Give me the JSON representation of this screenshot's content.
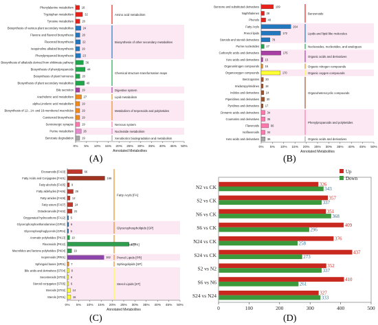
{
  "panel_labels": {
    "a": "(A)",
    "b": "(B)",
    "c": "(C)",
    "d": "(D)"
  },
  "chart_data": [
    {
      "id": "A",
      "type": "bar",
      "orientation": "horizontal",
      "xlabel": "Annotated Metabolites",
      "x_ticks": [
        "0%",
        "5%",
        "10%",
        "15%",
        "20%",
        "25%",
        "30%",
        "35%",
        "40%",
        "45%",
        "50%"
      ],
      "xlim": [
        0,
        0.5
      ],
      "n_total": 1000,
      "categories": [
        "Phenylalanine metabolism",
        "Tryptophan metabolism",
        "Tyrosine metabolism",
        "Biosynthesis of various plant secondary metabolites",
        "Flavone and flavonol biosynthesis",
        "Flavonoid biosynthesis",
        "Isoquinoline alkaloid biosynthesis",
        "Phenylpropanoid biosynthesis",
        "Biosynthesis of alkaloids derived from shikimate pathway",
        "Biosynthesis of phenylpropanoids",
        "Biosynthesis of plant hormones",
        "Biosynthesis of plant secondary metabolites",
        "Bile secretion",
        "Arachidonic acid metabolism",
        "alpha-Linolenic acid metabolism",
        "Biosynthesis of 12-, 14- and 16-membered macrolides",
        "Carotenoid biosynthesis",
        "Serotonergic synapse",
        "Purine metabolism",
        "Benzoate degradation"
      ],
      "values": [
        18,
        32,
        20,
        24,
        20,
        22,
        19,
        23,
        36,
        44,
        20,
        40,
        19,
        27,
        19,
        19,
        19,
        19,
        26,
        19
      ],
      "colors": [
        "#e8221b",
        "#e8221b",
        "#e8221b",
        "#2278be",
        "#2278be",
        "#2278be",
        "#2278be",
        "#2278be",
        "#1fa64a",
        "#1fa64a",
        "#1fa64a",
        "#1fa64a",
        "#a83ea3",
        "#f08a1c",
        "#f08a1c",
        "#f08a1c",
        "#f08a1c",
        "#ff78ad",
        "#e88ad0",
        "#a7a7a7"
      ],
      "groups": [
        {
          "name": "Amino acid metabolism",
          "start": 0,
          "end": 2,
          "color": "#e8221b"
        },
        {
          "name": "Biosynthesis of other secondary metabolites",
          "start": 3,
          "end": 7,
          "color": "#2278be"
        },
        {
          "name": "Chemical structure transformation maps",
          "start": 8,
          "end": 11,
          "color": "#1fa64a"
        },
        {
          "name": "Digestive system",
          "start": 12,
          "end": 12,
          "color": "#a83ea3"
        },
        {
          "name": "Lipid metabolism",
          "start": 13,
          "end": 13,
          "color": "#f08a1c"
        },
        {
          "name": "Metabolism of terpenoids and polyketides",
          "start": 14,
          "end": 16,
          "color": "#f08a1c"
        },
        {
          "name": "Nervous system",
          "start": 17,
          "end": 17,
          "color": "#ff78ad"
        },
        {
          "name": "Nucleotide metabolism",
          "start": 18,
          "end": 18,
          "color": "#e88ad0"
        },
        {
          "name": "Xenobiotics biodegradation and metabolism",
          "start": 19,
          "end": 19,
          "color": "#a7a7a7"
        }
      ]
    },
    {
      "id": "B",
      "type": "bar",
      "orientation": "horizontal",
      "xlabel": "Annotated Metabolites",
      "x_ticks": [
        "0%",
        "5%",
        "10%",
        "15%",
        "20%",
        "25%",
        "30%",
        "35%",
        "40%",
        "45%",
        "50%"
      ],
      "xlim": [
        0,
        0.5
      ],
      "n_total": 2000,
      "categories": [
        "Benzene and substituted derivatives",
        "Naphthalenes",
        "Phenols",
        "Fatty Acyls",
        "Prenol lipids",
        "Steroids and steroid derivatives",
        "Purine nucleotides",
        "Carboxylic acids and derivatives",
        "Keto acids and derivatives",
        "Organonitrogen compounds",
        "Organooxygen compounds",
        "Benzopyrans",
        "Imidazopyrimidines",
        "Indoles and derivatives",
        "Piperidines and derivatives",
        "Pyridines and derivatives",
        "Cinnamic acids and derivatives",
        "Coumarins and derivatives",
        "Flavonoids",
        "Isoflavonoids",
        "Keto acids and derivatives"
      ],
      "values": [
        109,
        28,
        40,
        264,
        172,
        78,
        27,
        175,
        15,
        15,
        170,
        20,
        18,
        24,
        30,
        17,
        34,
        35,
        66,
        34,
        36
      ],
      "colors": [
        "#e8221b",
        "#e8221b",
        "#e8221b",
        "#2278be",
        "#2278be",
        "#2278be",
        "#1fa64a",
        "#a83ea3",
        "#a83ea3",
        "#f08a1c",
        "#ffff33",
        "#a0522d",
        "#a0522d",
        "#a0522d",
        "#a0522d",
        "#a0522d",
        "#ff78ad",
        "#ff78ad",
        "#ff78ad",
        "#ff78ad",
        "#a7a7a7"
      ],
      "groups": [
        {
          "name": "Benzenoids",
          "start": 0,
          "end": 2,
          "color": "#e8221b"
        },
        {
          "name": "Lipids and lipid-like molecules",
          "start": 3,
          "end": 5,
          "color": "#2278be"
        },
        {
          "name": "Nucleosides, nucleotides, and analogues",
          "start": 6,
          "end": 6,
          "color": "#1fa64a"
        },
        {
          "name": "Organic acids and derivatives",
          "start": 7,
          "end": 8,
          "color": "#a83ea3"
        },
        {
          "name": "Organic nitrogen compounds",
          "start": 9,
          "end": 9,
          "color": "#f08a1c"
        },
        {
          "name": "Organic oxygen compounds",
          "start": 10,
          "end": 10,
          "color": "#ffff33"
        },
        {
          "name": "Organoheterocyclic compounds",
          "start": 11,
          "end": 15,
          "color": "#a0522d"
        },
        {
          "name": "Phenylpropanoids and polyketides",
          "start": 16,
          "end": 19,
          "color": "#ff78ad"
        },
        {
          "name": "Organic acids and derivatives",
          "start": 20,
          "end": 20,
          "color": "#a7a7a7"
        }
      ]
    },
    {
      "id": "C",
      "type": "bar",
      "orientation": "horizontal",
      "xlabel": "Annotated Metabolites",
      "x_ticks": [
        "0%",
        "5%",
        "10%",
        "15%",
        "20%",
        "25%",
        "30%",
        "35%",
        "40%",
        "45%",
        "50%"
      ],
      "xlim": [
        0,
        0.5
      ],
      "n_total": 1000,
      "categories": [
        "Eicosanoids [FA03]",
        "Fatty Acids and Conjugates [FA01]",
        "Fatty alcohols [FA05]",
        "Fatty aldehydes [FA06]",
        "Fatty amides [FA08]",
        "Fatty esters [FA07]",
        "Octadecanoids [FA02]",
        "Oxygenated hydrocarbons [FA12]",
        "Glycerophosphoethanolamines [GP02]",
        "Glycerophosphoglycerols [GP04]",
        "Aromatic polyketides [PK13]",
        "Flavonoids [PK12]",
        "Macrolides and lactone polyketides [PK04]",
        "Isoprenoids [PR01]",
        "Sphingoid bases [SP01]",
        "Bile acids and derivatives [ST04]",
        "Secosteroids [ST03]",
        "Steroid conjugates [ST05]",
        "Steroids [ST02]",
        "Sterols [ST01]"
      ],
      "values": [
        66,
        166,
        9,
        26,
        12,
        24,
        21,
        5,
        6,
        5,
        10,
        273,
        19,
        162,
        7,
        8,
        6,
        6,
        14,
        15
      ],
      "colors": [
        "#c0382b",
        "#a0331f",
        "#c0382b",
        "#c0382b",
        "#c0382b",
        "#c0382b",
        "#c0382b",
        "#2874a6",
        "#2874a6",
        "#2874a6",
        "#2e9e4e",
        "#2e9e4e",
        "#2e9e4e",
        "#8e44ad",
        "#f08a1c",
        "#ffff33",
        "#ffff33",
        "#ffff33",
        "#ffff33",
        "#ffff33"
      ],
      "groups": [
        {
          "name": "Fatty Acyls [FA]",
          "start": 0,
          "end": 7,
          "color": "#f08a1c"
        },
        {
          "name": "Glycerophospholipids [GP]",
          "start": 8,
          "end": 9,
          "color": "#f08a1c"
        },
        {
          "name": "Polyketides [PK]",
          "start": 10,
          "end": 12,
          "color": "#f08a1c"
        },
        {
          "name": "Prenol Lipids [PR]",
          "start": 13,
          "end": 13,
          "color": "#f08a1c"
        },
        {
          "name": "Sphingolipids [SP]",
          "start": 14,
          "end": 14,
          "color": "#f08a1c"
        },
        {
          "name": "Sterol Lipids [ST]",
          "start": 15,
          "end": 19,
          "color": "#ffff33"
        }
      ]
    },
    {
      "id": "D",
      "type": "bar",
      "orientation": "horizontal",
      "categories": [
        "N2 vs CK",
        "S2 vs CK",
        "N6 vs CK",
        "S6 vs CK",
        "N24 vs CK",
        "S24 vs CK",
        "S2 vs N2",
        "S6 vs N6",
        "S24 vs N24"
      ],
      "series": [
        {
          "name": "Up",
          "color": "#c8281e",
          "values": [
            326,
            357,
            351,
            409,
            376,
            437,
            352,
            410,
            327
          ]
        },
        {
          "name": "Down",
          "color": "#3c9a3c",
          "values": [
            343,
            337,
            368,
            296,
            258,
            273,
            337,
            261,
            333
          ]
        }
      ],
      "xlim": [
        0,
        500
      ],
      "x_ticks": [
        0,
        100,
        200,
        300,
        400,
        500
      ],
      "legend": "top-right"
    }
  ]
}
